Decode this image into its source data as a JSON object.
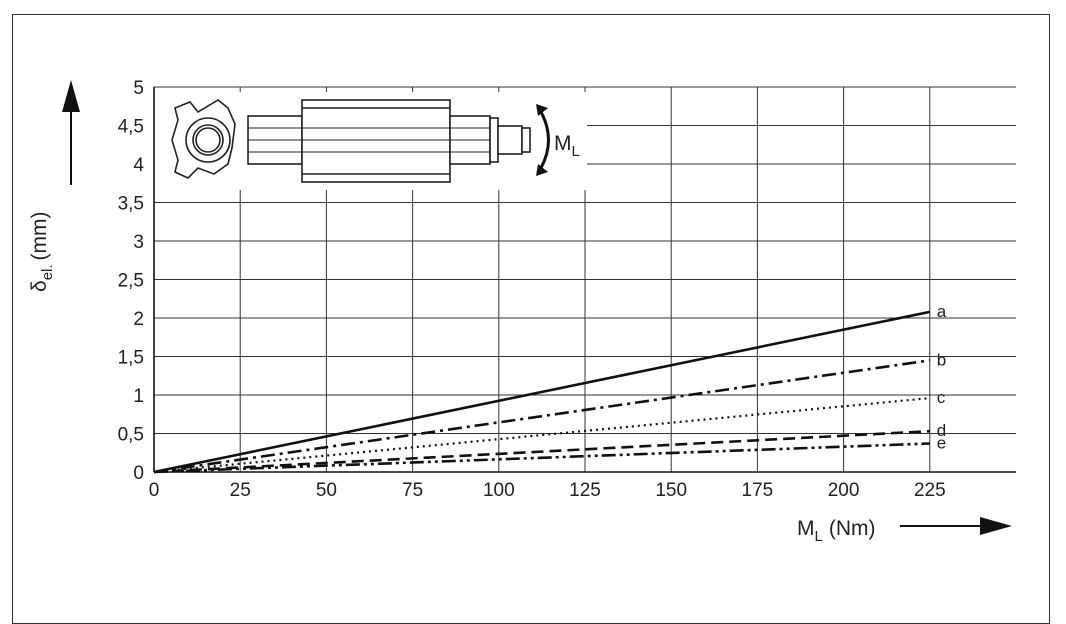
{
  "chart_data": {
    "type": "line",
    "title": "",
    "x_axis": {
      "label_main": "M",
      "label_sub": "L",
      "label_unit": "(Nm)",
      "ticks": [
        0,
        25,
        50,
        75,
        100,
        125,
        150,
        175,
        200,
        225
      ],
      "tick_labels": [
        "0",
        "25",
        "50",
        "75",
        "100",
        "125",
        "150",
        "175",
        "200",
        "225"
      ],
      "range": [
        0,
        250
      ]
    },
    "y_axis": {
      "label_main": "δ",
      "label_sub": "el.",
      "label_unit": "(mm)",
      "ticks": [
        0,
        0.5,
        1,
        1.5,
        2,
        2.5,
        3,
        3.5,
        4,
        4.5,
        5
      ],
      "tick_labels": [
        "0",
        "0,5",
        "1",
        "1,5",
        "2",
        "2,5",
        "3",
        "3,5",
        "4",
        "4,5",
        "5"
      ],
      "range": [
        0,
        5
      ]
    },
    "grid": true,
    "series": [
      {
        "name": "a",
        "style": "solid",
        "x": [
          0,
          225
        ],
        "y": [
          0,
          2.08
        ]
      },
      {
        "name": "b",
        "style": "dash-dot",
        "x": [
          0,
          225
        ],
        "y": [
          0,
          1.45
        ]
      },
      {
        "name": "c",
        "style": "dotted",
        "x": [
          0,
          225
        ],
        "y": [
          0,
          0.96
        ]
      },
      {
        "name": "d",
        "style": "dashed",
        "x": [
          0,
          225
        ],
        "y": [
          0,
          0.53
        ]
      },
      {
        "name": "e",
        "style": "dash-dot-dot",
        "x": [
          0,
          225
        ],
        "y": [
          0,
          0.37
        ]
      }
    ],
    "inset_label_main": "M",
    "inset_label_sub": "L"
  }
}
